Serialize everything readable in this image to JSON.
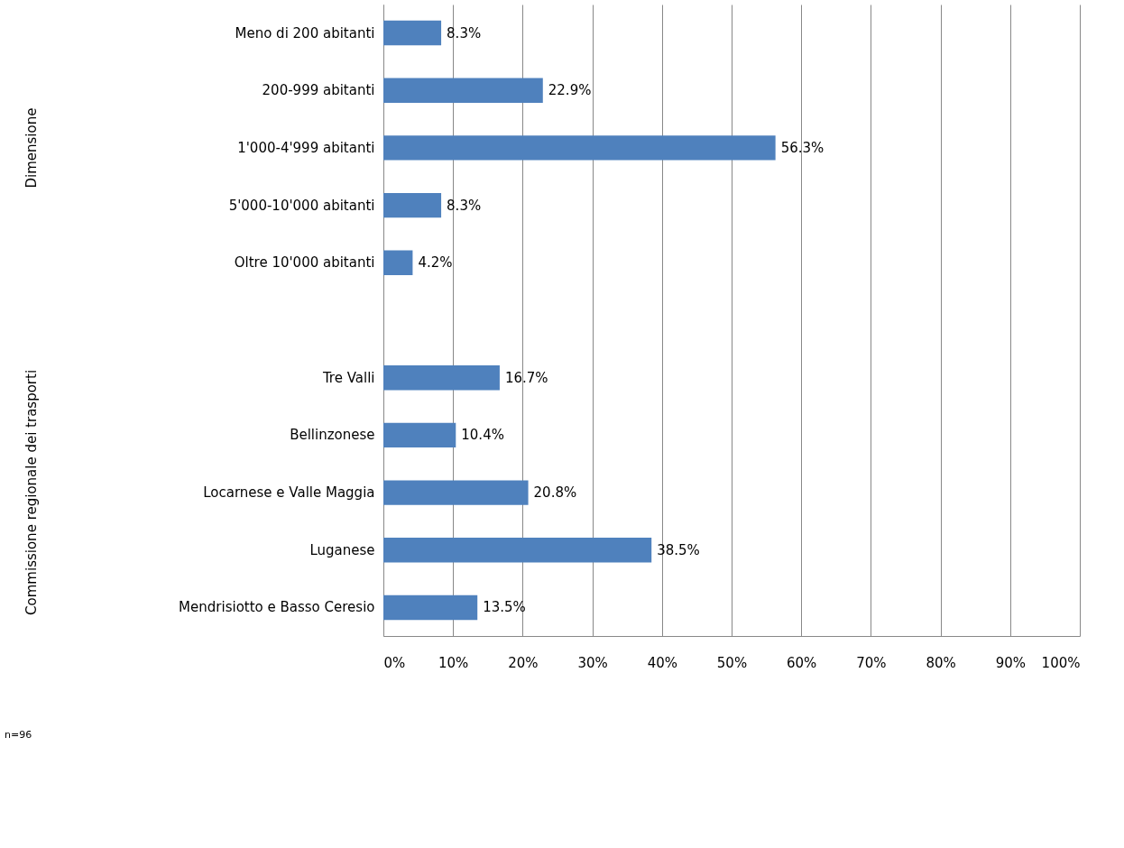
{
  "chart_data": {
    "type": "bar",
    "orientation": "horizontal",
    "categories": [
      "Meno di 200 abitanti",
      "200-999 abitanti",
      "1'000-4'999 abitanti",
      "5'000-10'000 abitanti",
      "Oltre 10'000 abitanti",
      null,
      "Tre Valli",
      "Bellinzonese",
      "Locarnese e Valle Maggia",
      "Luganese",
      "Mendrisiotto e Basso Ceresio"
    ],
    "values": [
      8.3,
      22.9,
      56.3,
      8.3,
      4.2,
      null,
      16.7,
      10.4,
      20.8,
      38.5,
      13.5
    ],
    "value_labels": [
      "8.3%",
      "22.9%",
      "56.3%",
      "8.3%",
      "4.2%",
      null,
      "16.7%",
      "10.4%",
      "20.8%",
      "38.5%",
      "13.5%"
    ],
    "color": "#4f81bd",
    "xlim": [
      0,
      100
    ],
    "xticks": [
      {
        "value": 0,
        "label": "0%"
      },
      {
        "value": 10,
        "label": "10%"
      },
      {
        "value": 20,
        "label": "20%"
      },
      {
        "value": 30,
        "label": "30%"
      },
      {
        "value": 40,
        "label": "40%"
      },
      {
        "value": 50,
        "label": "50%"
      },
      {
        "value": 60,
        "label": "60%"
      },
      {
        "value": 70,
        "label": "70%"
      },
      {
        "value": 80,
        "label": "80%"
      },
      {
        "value": 90,
        "label": "90%"
      },
      {
        "value": 100,
        "label": "100%"
      }
    ],
    "grid": "x",
    "annotations": [
      "Dimensione",
      "Commissione regionale dei trasporti",
      "n=96"
    ]
  }
}
